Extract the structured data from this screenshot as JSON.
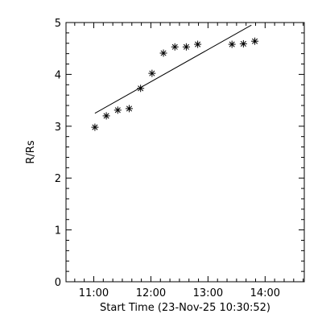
{
  "chart_data": {
    "type": "scatter",
    "xlabel": "Start Time (23-Nov-25 10:30:52)",
    "ylabel": "R/Rs",
    "x_unit": "hours",
    "xlim": [
      10.514,
      14.686
    ],
    "ylim": [
      0,
      5
    ],
    "x_ticks": [
      11,
      12,
      13,
      14
    ],
    "x_tick_labels": [
      "11:00",
      "12:00",
      "13:00",
      "14:00"
    ],
    "y_ticks": [
      0,
      1,
      2,
      3,
      4,
      5
    ],
    "y_tick_labels": [
      "0",
      "1",
      "2",
      "3",
      "4",
      "5"
    ],
    "grid": false,
    "colors": {
      "marker": "#000000",
      "line": "#000000",
      "axes": "#000000",
      "background": "#ffffff"
    },
    "points": {
      "marker": "asterisk",
      "x": [
        11.02,
        11.22,
        11.42,
        11.62,
        11.82,
        12.02,
        12.22,
        12.42,
        12.62,
        12.82,
        13.42,
        13.62,
        13.82
      ],
      "y": [
        2.98,
        3.2,
        3.31,
        3.34,
        3.73,
        4.02,
        4.41,
        4.53,
        4.53,
        4.58,
        4.58,
        4.59,
        4.64
      ]
    },
    "fit_line": {
      "x": [
        11.02,
        13.76
      ],
      "y": [
        3.25,
        4.95
      ]
    }
  }
}
